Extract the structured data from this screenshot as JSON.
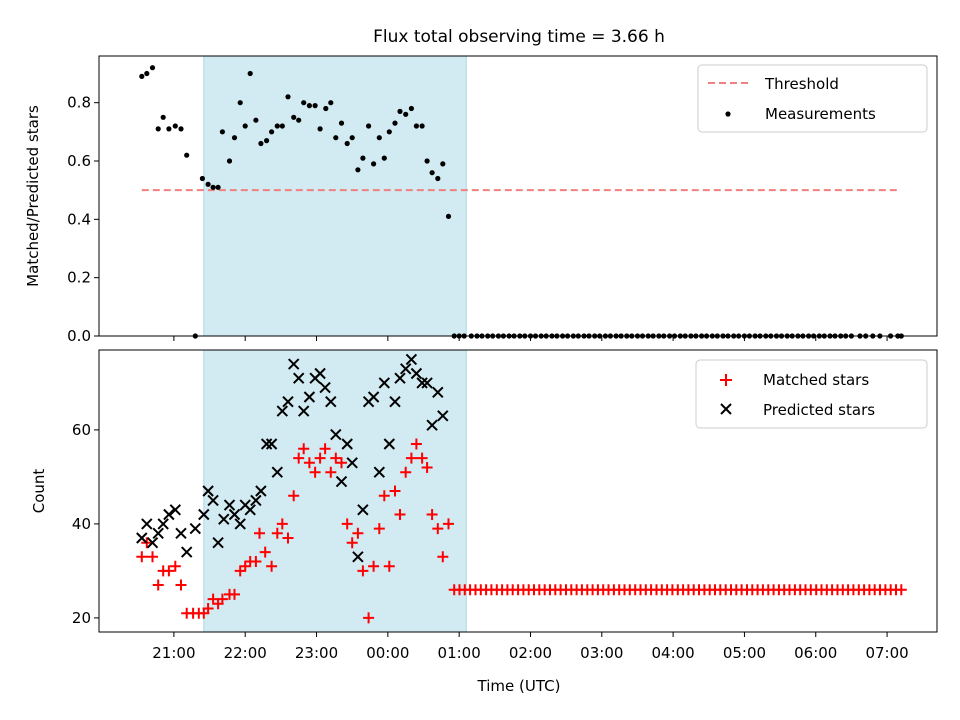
{
  "chart_data": {
    "title": "Flux total observing time = 3.66 h",
    "xlabel": "Time (UTC)",
    "x_unit": "hours after 20:00 UTC",
    "x_ticks": [
      {
        "pos": 1,
        "label": "21:00"
      },
      {
        "pos": 2,
        "label": "22:00"
      },
      {
        "pos": 3,
        "label": "23:00"
      },
      {
        "pos": 4,
        "label": "00:00"
      },
      {
        "pos": 5,
        "label": "01:00"
      },
      {
        "pos": 6,
        "label": "02:00"
      },
      {
        "pos": 7,
        "label": "03:00"
      },
      {
        "pos": 8,
        "label": "04:00"
      },
      {
        "pos": 9,
        "label": "05:00"
      },
      {
        "pos": 10,
        "label": "06:00"
      },
      {
        "pos": 11,
        "label": "07:00"
      }
    ],
    "xlim": [
      -0.05,
      11.7
    ],
    "observing_window": {
      "start": 1.42,
      "end": 5.1,
      "color": "#add8e6"
    },
    "panels": [
      {
        "type": "scatter",
        "ylabel": "Matched/Predicted stars",
        "ylim": [
          0,
          0.96
        ],
        "y_ticks": [
          0.0,
          0.2,
          0.4,
          0.6,
          0.8
        ],
        "y_tick_labels": [
          "0.0",
          "0.2",
          "0.4",
          "0.6",
          "0.8"
        ],
        "legend": {
          "position": "top-right",
          "entries": [
            "Threshold",
            "Measurements"
          ]
        },
        "threshold": {
          "name": "Threshold",
          "value": 0.5,
          "x_start": 0.55,
          "x_end": 11.15,
          "color": "#f08080"
        },
        "measurements": {
          "name": "Measurements",
          "color": "#000000",
          "x": [
            0.55,
            0.62,
            0.7,
            0.78,
            0.85,
            0.93,
            1.02,
            1.1,
            1.18,
            1.3,
            1.4,
            1.48,
            1.55,
            1.62,
            1.68,
            1.78,
            1.85,
            1.93,
            2.0,
            2.07,
            2.15,
            2.22,
            2.3,
            2.37,
            2.45,
            2.52,
            2.6,
            2.68,
            2.75,
            2.82,
            2.9,
            2.98,
            3.05,
            3.13,
            3.2,
            3.27,
            3.35,
            3.43,
            3.5,
            3.58,
            3.65,
            3.73,
            3.8,
            3.88,
            3.95,
            4.02,
            4.1,
            4.17,
            4.25,
            4.33,
            4.4,
            4.48,
            4.55,
            4.62,
            4.7,
            4.77,
            4.85,
            4.93,
            5.0,
            5.07,
            5.17,
            5.25,
            5.32,
            5.4,
            5.47,
            5.55,
            5.62,
            5.7,
            5.77,
            5.85,
            5.92,
            6.0,
            6.07,
            6.15,
            6.22,
            6.3,
            6.37,
            6.45,
            6.52,
            6.6,
            6.67,
            6.75,
            6.82,
            6.9,
            6.97,
            7.05,
            7.12,
            7.2,
            7.27,
            7.35,
            7.42,
            7.5,
            7.57,
            7.65,
            7.72,
            7.8,
            7.87,
            7.95,
            8.02,
            8.1,
            8.17,
            8.25,
            8.32,
            8.4,
            8.47,
            8.55,
            8.62,
            8.7,
            8.77,
            8.85,
            8.92,
            9.0,
            9.07,
            9.15,
            9.22,
            9.3,
            9.37,
            9.45,
            9.52,
            9.6,
            9.67,
            9.75,
            9.82,
            9.9,
            9.97,
            10.05,
            10.12,
            10.2,
            10.27,
            10.35,
            10.42,
            10.5,
            10.62,
            10.7,
            10.8,
            10.9,
            11.05,
            11.15,
            11.2
          ],
          "y": [
            0.89,
            0.9,
            0.92,
            0.71,
            0.75,
            0.71,
            0.72,
            0.71,
            0.62,
            0.0,
            0.54,
            0.52,
            0.51,
            0.51,
            0.7,
            0.6,
            0.68,
            0.8,
            0.72,
            0.9,
            0.74,
            0.66,
            0.67,
            0.7,
            0.72,
            0.72,
            0.82,
            0.75,
            0.74,
            0.8,
            0.79,
            0.79,
            0.71,
            0.78,
            0.8,
            0.68,
            0.73,
            0.66,
            0.68,
            0.57,
            0.61,
            0.72,
            0.59,
            0.68,
            0.61,
            0.7,
            0.73,
            0.77,
            0.76,
            0.78,
            0.72,
            0.72,
            0.6,
            0.56,
            0.54,
            0.59,
            0.41,
            0,
            0,
            0,
            0,
            0,
            0,
            0,
            0,
            0,
            0,
            0,
            0,
            0,
            0,
            0,
            0,
            0,
            0,
            0,
            0,
            0,
            0,
            0,
            0,
            0,
            0,
            0,
            0,
            0,
            0,
            0,
            0,
            0,
            0,
            0,
            0,
            0,
            0,
            0,
            0,
            0,
            0,
            0,
            0,
            0,
            0,
            0,
            0,
            0,
            0,
            0,
            0,
            0,
            0,
            0,
            0,
            0,
            0,
            0,
            0,
            0,
            0,
            0,
            0,
            0,
            0,
            0,
            0,
            0,
            0,
            0,
            0,
            0,
            0,
            0,
            0,
            0,
            0,
            0,
            0,
            0,
            0
          ]
        }
      },
      {
        "type": "scatter",
        "ylabel": "Count",
        "ylim": [
          17,
          77
        ],
        "y_ticks": [
          20,
          40,
          60
        ],
        "y_tick_labels": [
          "20",
          "40",
          "60"
        ],
        "legend": {
          "position": "top-right",
          "entries": [
            "Matched stars",
            "Predicted stars"
          ]
        },
        "matched": {
          "name": "Matched stars",
          "color": "#ff0000",
          "points": [
            [
              0.55,
              33
            ],
            [
              0.62,
              36
            ],
            [
              0.7,
              33
            ],
            [
              0.78,
              27
            ],
            [
              0.85,
              30
            ],
            [
              0.93,
              30
            ],
            [
              1.02,
              31
            ],
            [
              1.1,
              27
            ],
            [
              1.18,
              21
            ],
            [
              1.27,
              21
            ],
            [
              1.35,
              21
            ],
            [
              1.42,
              21
            ],
            [
              1.48,
              22
            ],
            [
              1.55,
              24
            ],
            [
              1.62,
              23
            ],
            [
              1.68,
              24
            ],
            [
              1.78,
              25
            ],
            [
              1.85,
              25
            ],
            [
              1.93,
              30
            ],
            [
              2.0,
              31
            ],
            [
              2.07,
              32
            ],
            [
              2.15,
              32
            ],
            [
              2.2,
              38
            ],
            [
              2.28,
              34
            ],
            [
              2.37,
              31
            ],
            [
              2.45,
              38
            ],
            [
              2.52,
              40
            ],
            [
              2.6,
              37
            ],
            [
              2.68,
              46
            ],
            [
              2.75,
              54
            ],
            [
              2.82,
              56
            ],
            [
              2.9,
              53
            ],
            [
              2.98,
              51
            ],
            [
              3.05,
              54
            ],
            [
              3.12,
              56
            ],
            [
              3.2,
              51
            ],
            [
              3.27,
              54
            ],
            [
              3.35,
              53
            ],
            [
              3.43,
              40
            ],
            [
              3.5,
              36
            ],
            [
              3.58,
              38
            ],
            [
              3.65,
              30
            ],
            [
              3.73,
              20
            ],
            [
              3.8,
              31
            ],
            [
              3.88,
              39
            ],
            [
              3.95,
              46
            ],
            [
              4.02,
              31
            ],
            [
              4.1,
              47
            ],
            [
              4.17,
              42
            ],
            [
              4.25,
              51
            ],
            [
              4.33,
              54
            ],
            [
              4.4,
              57
            ],
            [
              4.48,
              54
            ],
            [
              4.55,
              52
            ],
            [
              4.62,
              42
            ],
            [
              4.7,
              39
            ],
            [
              4.77,
              33
            ],
            [
              4.85,
              40
            ]
          ],
          "flat_run": {
            "x_start": 4.93,
            "x_end": 11.2,
            "count": 85,
            "value": 26
          }
        },
        "predicted": {
          "name": "Predicted stars",
          "color": "#000000",
          "points": [
            [
              0.55,
              37
            ],
            [
              0.62,
              40
            ],
            [
              0.7,
              36
            ],
            [
              0.78,
              38
            ],
            [
              0.85,
              40
            ],
            [
              0.93,
              42
            ],
            [
              1.02,
              43
            ],
            [
              1.1,
              38
            ],
            [
              1.18,
              34
            ],
            [
              1.3,
              39
            ],
            [
              1.42,
              42
            ],
            [
              1.48,
              47
            ],
            [
              1.55,
              45
            ],
            [
              1.62,
              36
            ],
            [
              1.7,
              41
            ],
            [
              1.78,
              44
            ],
            [
              1.85,
              42
            ],
            [
              1.93,
              40
            ],
            [
              2.0,
              44
            ],
            [
              2.07,
              43
            ],
            [
              2.15,
              45
            ],
            [
              2.22,
              47
            ],
            [
              2.3,
              57
            ],
            [
              2.37,
              57
            ],
            [
              2.45,
              51
            ],
            [
              2.52,
              64
            ],
            [
              2.6,
              66
            ],
            [
              2.68,
              74
            ],
            [
              2.75,
              71
            ],
            [
              2.82,
              64
            ],
            [
              2.9,
              67
            ],
            [
              2.98,
              71
            ],
            [
              3.05,
              72
            ],
            [
              3.12,
              69
            ],
            [
              3.2,
              66
            ],
            [
              3.27,
              59
            ],
            [
              3.35,
              49
            ],
            [
              3.43,
              57
            ],
            [
              3.5,
              53
            ],
            [
              3.58,
              33
            ],
            [
              3.65,
              43
            ],
            [
              3.73,
              66
            ],
            [
              3.8,
              67
            ],
            [
              3.88,
              51
            ],
            [
              3.95,
              70
            ],
            [
              4.02,
              57
            ],
            [
              4.1,
              66
            ],
            [
              4.17,
              71
            ],
            [
              4.25,
              73
            ],
            [
              4.33,
              75
            ],
            [
              4.4,
              72
            ],
            [
              4.48,
              70
            ],
            [
              4.55,
              70
            ],
            [
              4.62,
              61
            ],
            [
              4.7,
              68
            ],
            [
              4.77,
              63
            ]
          ]
        }
      }
    ]
  }
}
